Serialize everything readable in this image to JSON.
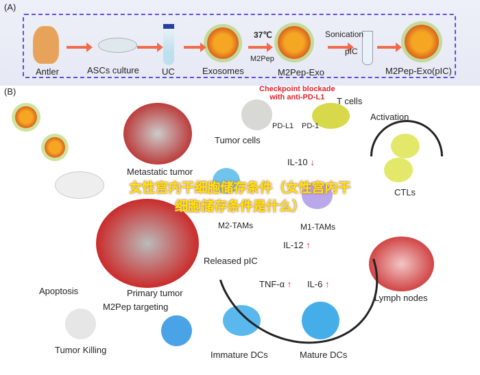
{
  "panel_a": {
    "label": "(A)",
    "steps": [
      "Antler",
      "ASCs culture",
      "UC",
      "Exosomes",
      "M2Pep-Exo",
      "M2Pep-Exo(pIC)"
    ],
    "temp": "37℃",
    "m2pep": "M2Pep",
    "sonication": "Sonication",
    "pic": "pIC"
  },
  "panel_b": {
    "label": "(B)",
    "checkpoint": "Checkpoint blockade\nwith anti-PD-L1",
    "t_cells": "T cells",
    "pd_l1": "PD-L1",
    "pd_1": "PD-1",
    "tumor_cells": "Tumor cells",
    "metastatic": "Metastatic tumor",
    "il10": "IL-10",
    "activation": "Activation",
    "m2tams": "M2-TAMs",
    "m1tams": "M1-TAMs",
    "ctls": "CTLs",
    "released_pic": "Released pIC",
    "il12": "IL-12",
    "tnfa": "TNF-α",
    "il6": "IL-6",
    "primary": "Primary tumor",
    "m2pep_targeting": "M2Pep targeting",
    "apoptosis": "Apoptosis",
    "tumor_killing": "Tumor Killing",
    "immature": "Immature DCs",
    "mature": "Mature DCs",
    "lymph": "Lymph nodes"
  },
  "watermark": "女性宫内干细胞储存条件（女性宫内干细胞储存条件是什么）",
  "colors": {
    "arrow": "#f26a4a",
    "dash": "#5a4fd6",
    "checkpoint": "#e8202a",
    "up_down": "#e8202a"
  }
}
